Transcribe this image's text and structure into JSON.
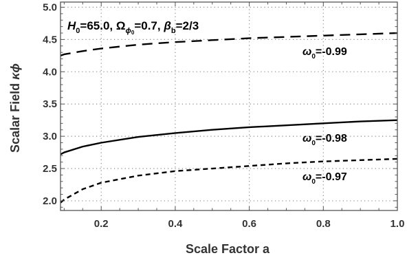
{
  "chart_data": {
    "type": "line",
    "xlabel": "Scale Factor a",
    "ylabel": {
      "main": "Scalar Field ",
      "symbol": "κϕ"
    },
    "xlim": [
      0.09,
      1.0
    ],
    "ylim": [
      1.85,
      5.08
    ],
    "xticks": [
      "0.2",
      "0.4",
      "0.6",
      "0.8",
      "1.0"
    ],
    "xtick_values": [
      0.2,
      0.4,
      0.6,
      0.8,
      1.0
    ],
    "yticks": [
      "2.0",
      "2.5",
      "3.0",
      "3.5",
      "4.0",
      "4.5",
      "5.0"
    ],
    "ytick_values": [
      2.0,
      2.5,
      3.0,
      3.5,
      4.0,
      4.5,
      5.0
    ],
    "grid": true,
    "annotation": {
      "H_sym": "H",
      "H_sub": "0",
      "H_val": "=65.0, ",
      "O_sym": "Ω",
      "O_sub": "ϕ",
      "O_subsub": "0",
      "O_val": "=0.7, ",
      "B_sym": "β",
      "B_sub": "b",
      "B_val": "=2/3"
    },
    "series": [
      {
        "style": "long-dash",
        "label_sym": "ω",
        "label_sub": "0",
        "label_val": "=-0.99",
        "x": [
          0.09,
          0.1,
          0.15,
          0.2,
          0.3,
          0.4,
          0.5,
          0.6,
          0.7,
          0.8,
          0.9,
          1.0
        ],
        "y": [
          4.25,
          4.27,
          4.32,
          4.36,
          4.42,
          4.46,
          4.49,
          4.52,
          4.54,
          4.56,
          4.58,
          4.6
        ]
      },
      {
        "style": "solid",
        "label_sym": "ω",
        "label_sub": "0",
        "label_val": "=-0.98",
        "x": [
          0.09,
          0.1,
          0.15,
          0.2,
          0.3,
          0.4,
          0.5,
          0.6,
          0.7,
          0.8,
          0.9,
          1.0
        ],
        "y": [
          2.72,
          2.75,
          2.84,
          2.9,
          2.99,
          3.05,
          3.1,
          3.14,
          3.17,
          3.2,
          3.23,
          3.25
        ]
      },
      {
        "style": "short-dash",
        "label_sym": "ω",
        "label_sub": "0",
        "label_val": "=-0.97",
        "x": [
          0.09,
          0.1,
          0.15,
          0.2,
          0.3,
          0.4,
          0.5,
          0.6,
          0.7,
          0.8,
          0.9,
          1.0
        ],
        "y": [
          1.97,
          2.02,
          2.18,
          2.28,
          2.39,
          2.46,
          2.5,
          2.54,
          2.58,
          2.61,
          2.63,
          2.65
        ]
      }
    ]
  }
}
